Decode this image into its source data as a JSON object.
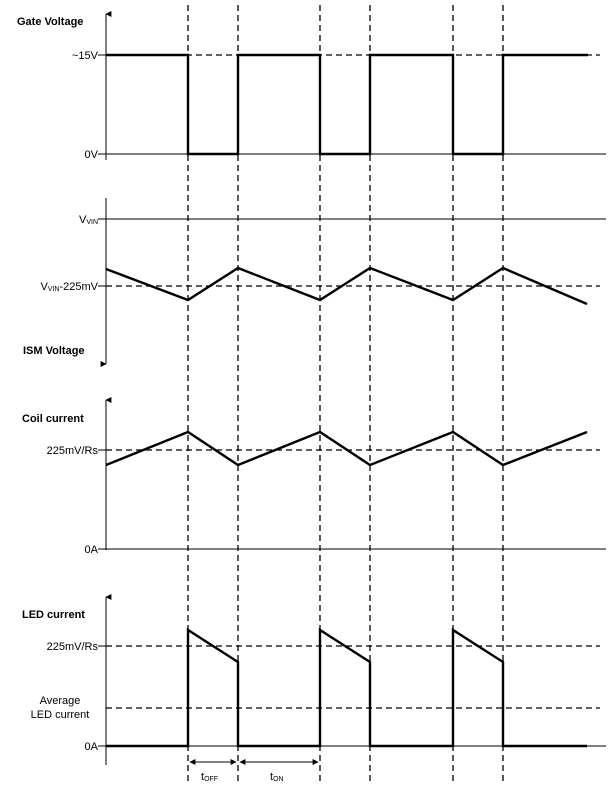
{
  "panels": {
    "gate": {
      "title": "Gate Voltage",
      "levels": {
        "high": "~15V",
        "low": "0V"
      }
    },
    "ism": {
      "title": "ISM Voltage",
      "levels": {
        "vin_main": "V",
        "vin_sub": "VIN",
        "vin_ripple_main": "V",
        "vin_ripple_sub": "VIN",
        "vin_ripple_suffix": "-225mV"
      }
    },
    "coil": {
      "title": "Coil current",
      "levels": {
        "peak": "225mV/Rs",
        "zero": "0A"
      }
    },
    "led": {
      "title": "LED current",
      "levels": {
        "peak": "225mV/Rs",
        "average_line1": "Average",
        "average_line2": "LED current",
        "zero": "0A"
      }
    }
  },
  "timing": {
    "t_off_main": "t",
    "t_off_sub": "OFF",
    "t_on_main": "t",
    "t_on_sub": "ON"
  },
  "colors": {
    "line": "#000000",
    "background": "#ffffff"
  }
}
